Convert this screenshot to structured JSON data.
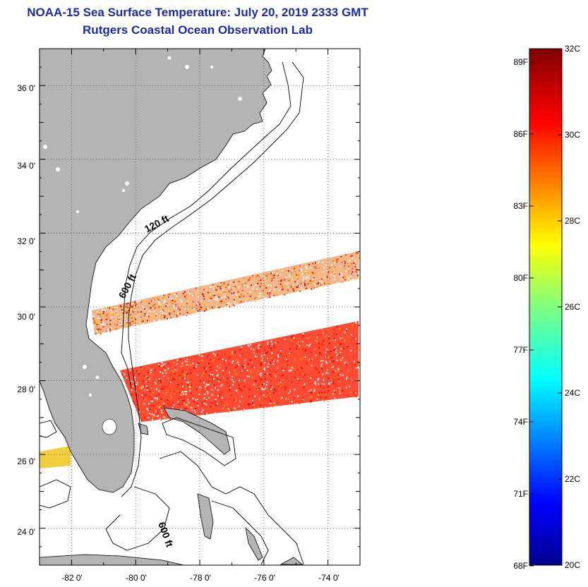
{
  "header": {
    "title": "NOAA-15 Sea Surface Temperature:  July 20, 2019 2333 GMT",
    "subtitle": "Rutgers Coastal Ocean Observation Lab"
  },
  "map": {
    "lat_range": [
      23.0,
      37.0
    ],
    "lon_range": [
      -83.0,
      -73.0
    ],
    "lat_ticks": [
      "36 0'",
      "34 0'",
      "32 0'",
      "30 0'",
      "28 0'",
      "26 0'",
      "24 0'"
    ],
    "lon_ticks": [
      "-82 0'",
      "-80 0'",
      "-78 0'",
      "-76 0'",
      "-74 0'"
    ],
    "grid": true,
    "contour_labels": [
      "120 ft",
      "600 ft",
      "600 ft"
    ],
    "land_color": "#b4b4b4"
  },
  "colorbar": {
    "f_labels": [
      "89F",
      "86F",
      "83F",
      "80F",
      "77F",
      "74F",
      "71F",
      "68F"
    ],
    "c_labels": [
      "32C",
      "30C",
      "28C",
      "26C",
      "24C",
      "22C",
      "20C"
    ],
    "range_c": [
      20,
      32
    ],
    "range_f": [
      68,
      89.6
    ]
  }
}
